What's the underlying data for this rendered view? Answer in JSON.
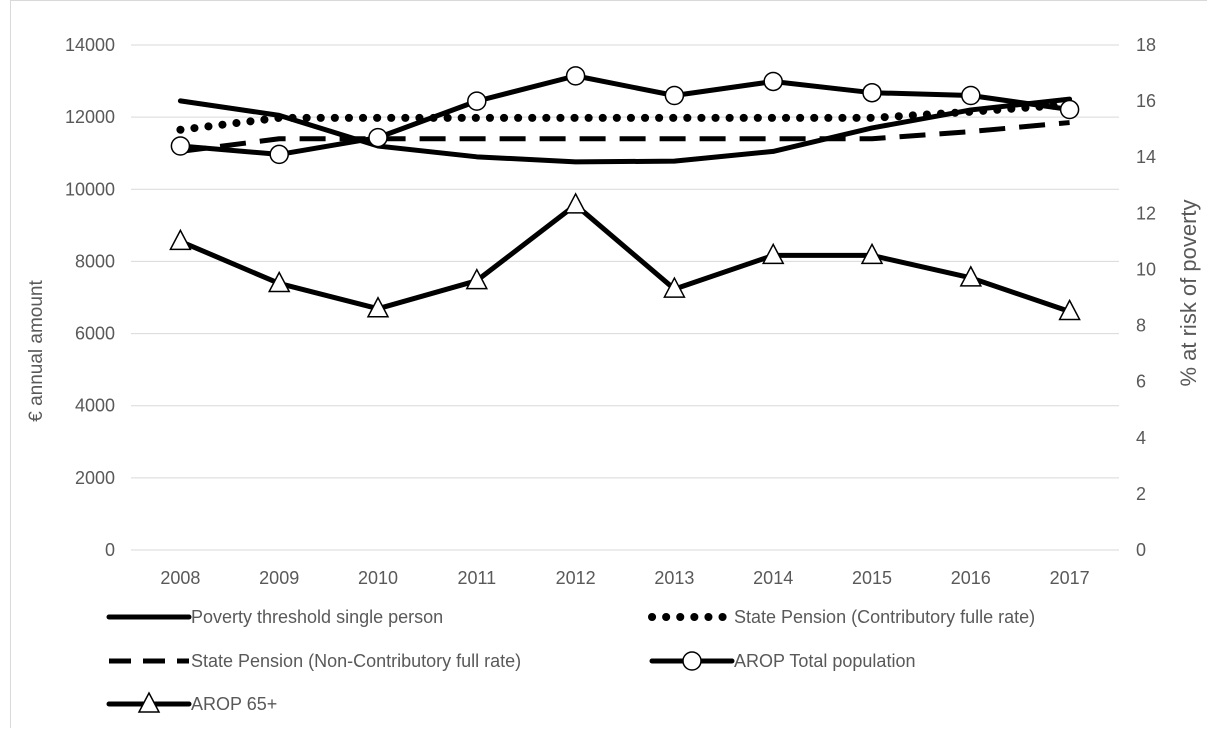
{
  "chart_data": {
    "type": "line",
    "title": "",
    "categories": [
      "2008",
      "2009",
      "2010",
      "2011",
      "2012",
      "2013",
      "2014",
      "2015",
      "2016",
      "2017"
    ],
    "ylabel_left": "€ annual amount",
    "ylabel_right": "% at risk of poverty",
    "ylim_left": [
      0,
      14000
    ],
    "ylim_right": [
      0,
      18
    ],
    "yticks_left": [
      "0",
      "2000",
      "4000",
      "6000",
      "8000",
      "10000",
      "12000",
      "14000"
    ],
    "yticks_right": [
      "0",
      "2",
      "4",
      "6",
      "8",
      "10",
      "12",
      "14",
      "16",
      "18"
    ],
    "grid": true,
    "legend_position": "bottom",
    "series": [
      {
        "name": "Poverty threshold single person",
        "axis": "left",
        "style": "solid",
        "marker": "none",
        "values": [
          12450,
          12050,
          11200,
          10900,
          10760,
          10780,
          11050,
          11700,
          12200,
          12500
        ]
      },
      {
        "name": "State Pension (Contributory fulle rate)",
        "axis": "left",
        "style": "dotted",
        "marker": "none",
        "values": [
          11650,
          11980,
          11980,
          11980,
          11980,
          11980,
          11980,
          11980,
          12150,
          12350
        ]
      },
      {
        "name": "State Pension (Non-Contributory full rate)",
        "axis": "left",
        "style": "dashed",
        "marker": "none",
        "values": [
          11050,
          11400,
          11400,
          11400,
          11400,
          11400,
          11400,
          11400,
          11600,
          11850
        ]
      },
      {
        "name": "AROP Total population",
        "axis": "right",
        "style": "solid",
        "marker": "circle",
        "values": [
          14.4,
          14.1,
          14.7,
          16.0,
          16.9,
          16.2,
          16.7,
          16.3,
          16.2,
          15.7
        ]
      },
      {
        "name": "AROP 65+",
        "axis": "right",
        "style": "solid",
        "marker": "triangle",
        "values": [
          11.0,
          9.5,
          8.6,
          9.6,
          12.3,
          9.3,
          10.5,
          10.5,
          9.7,
          8.5
        ]
      }
    ]
  }
}
